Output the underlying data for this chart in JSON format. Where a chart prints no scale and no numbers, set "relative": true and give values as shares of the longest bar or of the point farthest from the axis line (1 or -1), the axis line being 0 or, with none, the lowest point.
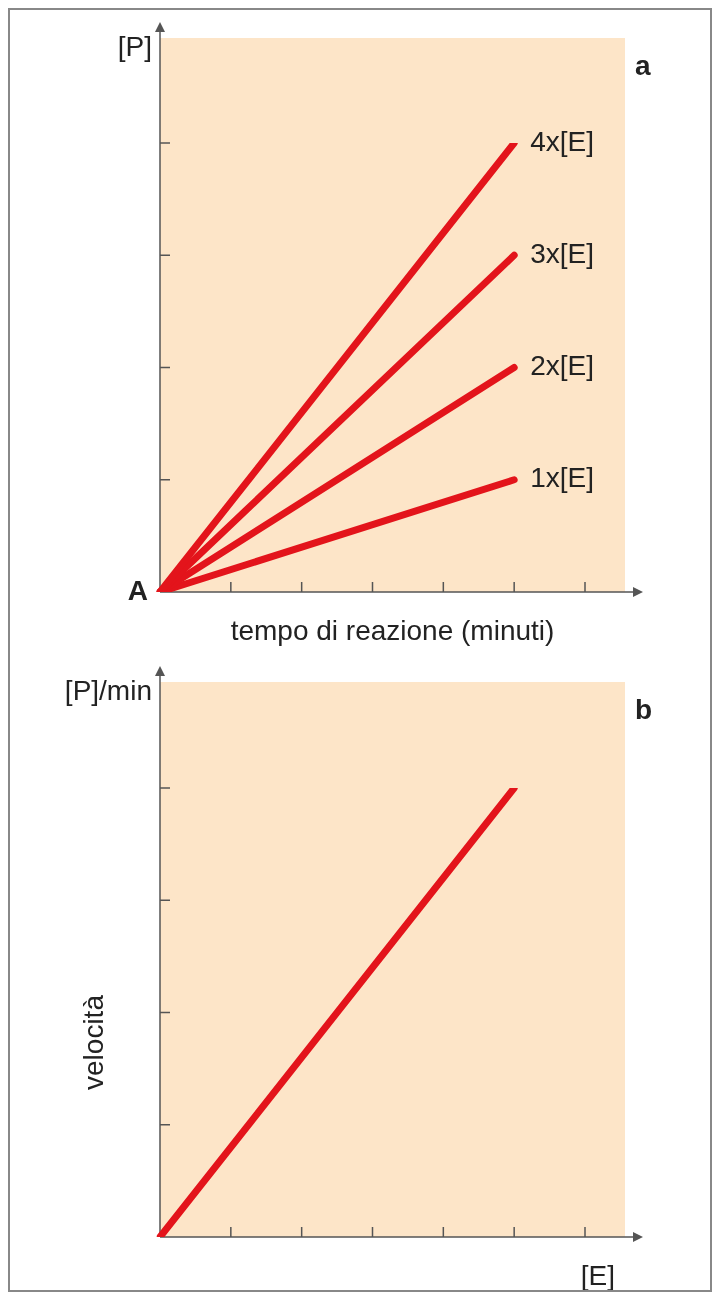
{
  "chart_data": [
    {
      "type": "line",
      "title": "a",
      "xlabel": "tempo di reazione (minuti)",
      "annotations": [
        "[P]",
        "A"
      ],
      "relative": true,
      "categories": [
        null,
        null,
        null,
        null,
        null,
        null,
        null
      ],
      "series": [
        {
          "name": "4x[E]",
          "color": "#e3141b",
          "values": [
            0,
            null,
            null,
            null,
            null,
            1,
            null
          ]
        },
        {
          "name": "3x[E]",
          "color": "#e3141b",
          "values": [
            0,
            null,
            null,
            null,
            null,
            0.75,
            null
          ]
        },
        {
          "name": "2x[E]",
          "color": "#e3141b",
          "values": [
            0,
            null,
            null,
            null,
            null,
            0.5,
            null
          ]
        },
        {
          "name": "1x[E]",
          "color": "#e3141b",
          "values": [
            0,
            null,
            null,
            null,
            null,
            0.25,
            null
          ]
        }
      ]
    },
    {
      "type": "line",
      "title": "b",
      "xlabel": "[E]",
      "ylabel": "velocità",
      "annotations": [
        "[P]/min"
      ],
      "relative": true,
      "categories": [
        null,
        null,
        null,
        null,
        null,
        null,
        null
      ],
      "series": [
        {
          "color": "#e3141b",
          "values": [
            0,
            null,
            null,
            null,
            null,
            1,
            null
          ]
        }
      ]
    }
  ]
}
